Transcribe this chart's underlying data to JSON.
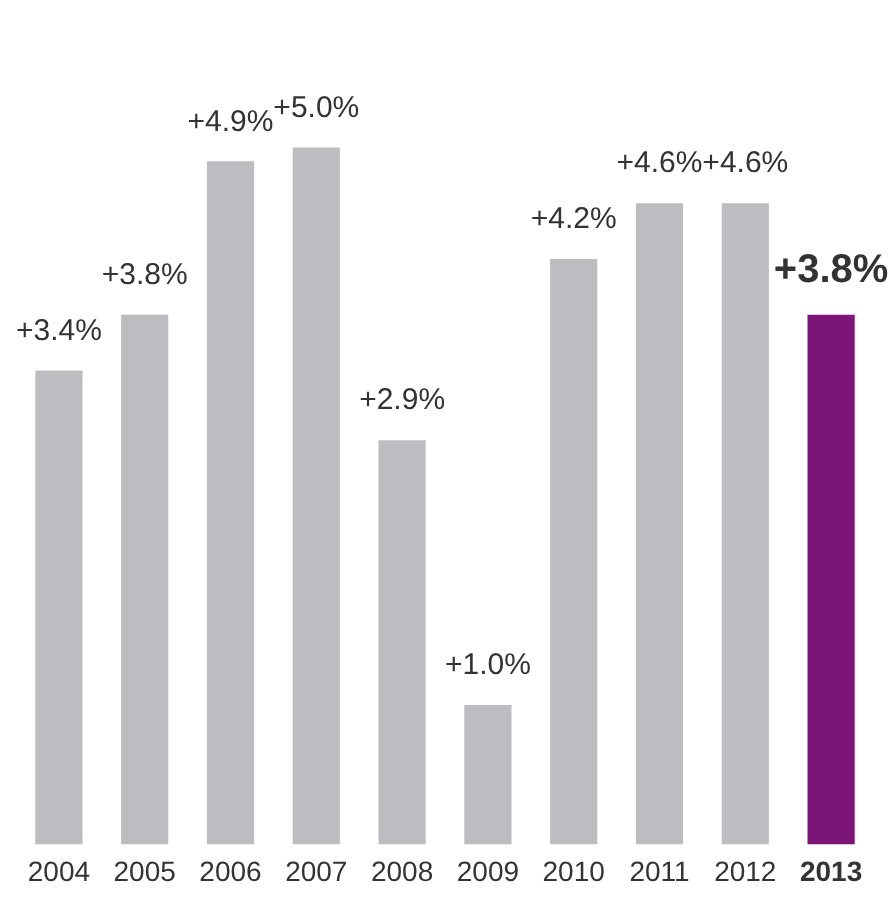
{
  "chart_data": {
    "type": "bar",
    "categories": [
      "2004",
      "2005",
      "2006",
      "2007",
      "2008",
      "2009",
      "2010",
      "2011",
      "2012",
      "2013"
    ],
    "values": [
      3.4,
      3.8,
      4.9,
      5.0,
      2.9,
      1.0,
      4.2,
      4.6,
      4.6,
      3.8
    ],
    "colors": [
      "#bdbcc0",
      "#bdbcc0",
      "#bdbcc0",
      "#bdbcc0",
      "#bdbcc0",
      "#bdbcc0",
      "#bdbcc0",
      "#bdbcc0",
      "#bdbcc0",
      "#7a1476"
    ],
    "value_labels": [
      "+3.4%",
      "+3.8%",
      "+4.9%",
      "+5.0%",
      "+2.9%",
      "+1.0%",
      "+4.2%",
      "+4.6%",
      "+4.6%",
      "+3.8%"
    ],
    "grid": false,
    "legend": false
  }
}
